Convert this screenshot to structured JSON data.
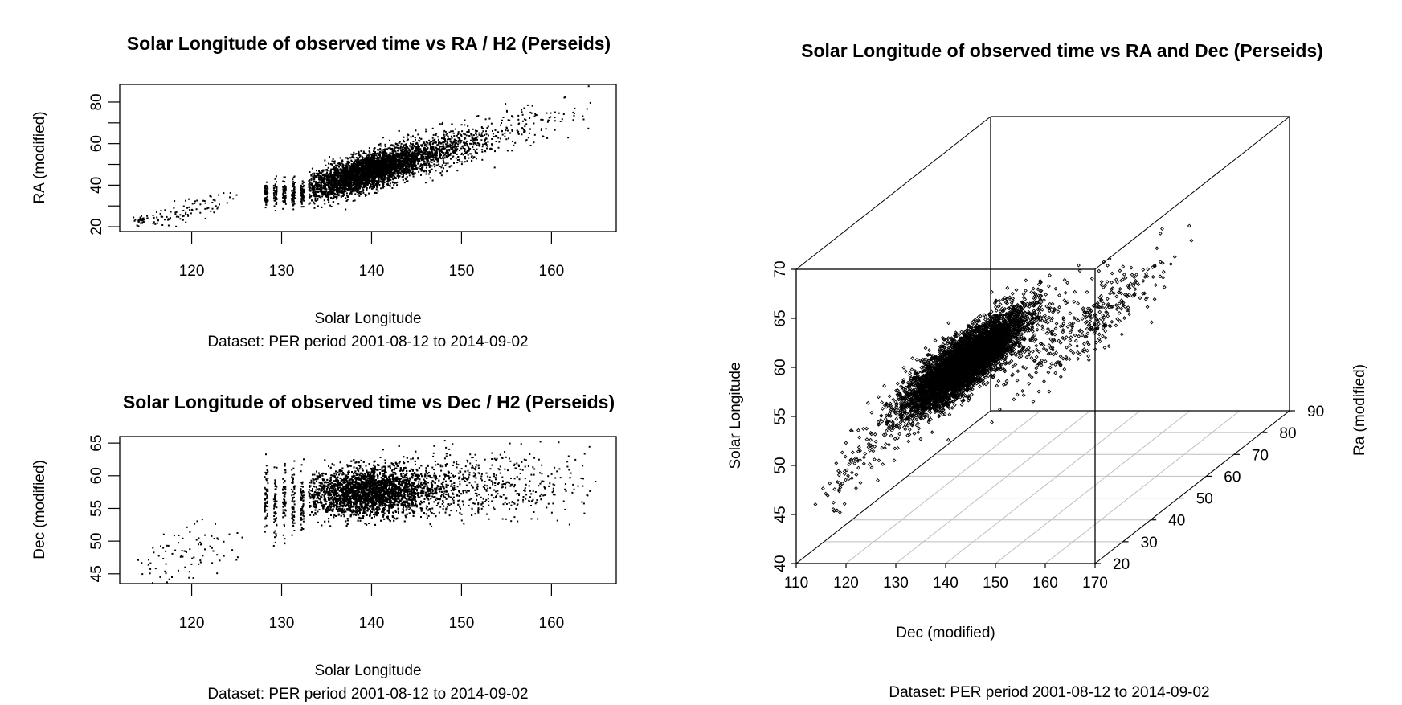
{
  "chart_data": [
    {
      "type": "scatter",
      "title": "Solar Longitude of observed time vs RA / H2 (Perseids)",
      "xlabel": "Solar Longitude",
      "ylabel": "RA (modified)",
      "subtitle": "Dataset: PER period 2001-08-12 to 2014-09-02",
      "xlim": [
        112,
        167.2
      ],
      "ylim": [
        17.7,
        88.5
      ],
      "xticks": [
        120,
        130,
        140,
        150,
        160
      ],
      "xtick_labels": [
        "120",
        "130",
        "140",
        "150",
        "160"
      ],
      "yticks": [
        20,
        30,
        40,
        50,
        60,
        70,
        80
      ],
      "ytick_labels": [
        "20",
        "",
        "40",
        "",
        "60",
        "",
        "80"
      ],
      "grid": false,
      "marker_color": "#000000",
      "clusters": [
        {
          "x_mean": 140,
          "x_sd": 3.5,
          "slope": 1.25,
          "y_at_140": 47,
          "y_sd": 4,
          "count": 5200,
          "x_min": 133
        },
        {
          "x_mean": 150,
          "x_sd": 6,
          "slope": 1.25,
          "y_at_140": 47,
          "y_sd": 5,
          "count": 500,
          "x_min": 146,
          "x_max": 165
        },
        {
          "x_mean": 119,
          "x_sd": 3,
          "slope": 1.1,
          "y_at_140": 50,
          "y_sd": 2.5,
          "count": 90,
          "x_min": 114,
          "x_max": 125
        },
        {
          "x_mean": 114.3,
          "x_sd": 0.3,
          "slope": 0,
          "y_at_140": 23,
          "y_sd": 1,
          "count": 30
        }
      ],
      "striped_bands": {
        "x_positions": [
          128.3,
          129.3,
          130.3,
          131.3,
          132.3
        ],
        "y_center": 36,
        "y_sd": 3,
        "count_each": 60
      }
    },
    {
      "type": "scatter",
      "title": "Solar Longitude of observed time vs Dec / H2 (Perseids)",
      "xlabel": "Solar Longitude",
      "ylabel": "Dec (modified)",
      "subtitle": "Dataset: PER period 2001-08-12 to 2014-09-02",
      "xlim": [
        112,
        167.2
      ],
      "ylim": [
        43.5,
        66
      ],
      "xticks": [
        120,
        130,
        140,
        150,
        160
      ],
      "xtick_labels": [
        "120",
        "130",
        "140",
        "150",
        "160"
      ],
      "yticks": [
        45,
        50,
        55,
        60,
        65
      ],
      "ytick_labels": [
        "45",
        "50",
        "55",
        "60",
        "65"
      ],
      "grid": false,
      "marker_color": "#000000",
      "clusters": [
        {
          "x_mean": 140,
          "x_sd": 3.5,
          "slope": 0.05,
          "y_at_140": 57.5,
          "y_sd": 1.8,
          "count": 5200,
          "x_min": 133
        },
        {
          "x_mean": 152,
          "x_sd": 6,
          "slope": 0.02,
          "y_at_140": 58.5,
          "y_sd": 2.5,
          "count": 500,
          "x_min": 146,
          "x_max": 165
        },
        {
          "x_mean": 119,
          "x_sd": 3,
          "slope": 0.3,
          "y_at_140": 54,
          "y_sd": 2.3,
          "count": 90,
          "x_min": 114,
          "x_max": 127
        }
      ],
      "striped_bands": {
        "x_positions": [
          128.3,
          129.3,
          130.3,
          131.3,
          132.3
        ],
        "y_center": 56,
        "y_sd": 2.6,
        "count_each": 60
      }
    },
    {
      "type": "scatter3d",
      "title": "Solar Longitude of observed time vs RA and Dec (Perseids)",
      "xlabel": "Dec (modified)",
      "ylabel": "Ra (modified)",
      "zlabel": "Solar Longitude",
      "subtitle": "Dataset: PER period 2001-08-12 to 2014-09-02",
      "xlim": [
        110,
        170
      ],
      "ylim": [
        20,
        90
      ],
      "zlim": [
        40,
        70
      ],
      "xticks": [
        110,
        120,
        130,
        140,
        150,
        160,
        170
      ],
      "xtick_labels": [
        "110",
        "120",
        "130",
        "140",
        "150",
        "160",
        "170"
      ],
      "yticks": [
        20,
        30,
        40,
        50,
        60,
        70,
        80,
        90
      ],
      "ytick_labels": [
        "20",
        "30",
        "40",
        "50",
        "60",
        "70",
        "80",
        "90"
      ],
      "zticks": [
        40,
        45,
        50,
        55,
        60,
        65,
        70
      ],
      "ztick_labels": [
        "40",
        "45",
        "50",
        "55",
        "60",
        "65",
        "70"
      ],
      "grid": true,
      "grid_color": "#bebebe",
      "marker_color": "#000000",
      "clusters": [
        {
          "screen_dec": 144,
          "screen_sl": 60.5,
          "spread_dec": 6.0,
          "spread_sl": 2.2,
          "count": 5500
        },
        {
          "screen_dec": 168,
          "screen_sl": 64.5,
          "spread_dec": 8.0,
          "spread_sl": 2.8,
          "count": 350
        },
        {
          "screen_dec": 123,
          "screen_sl": 50.5,
          "spread_dec": 5.0,
          "spread_sl": 2.8,
          "count": 110
        }
      ]
    }
  ]
}
